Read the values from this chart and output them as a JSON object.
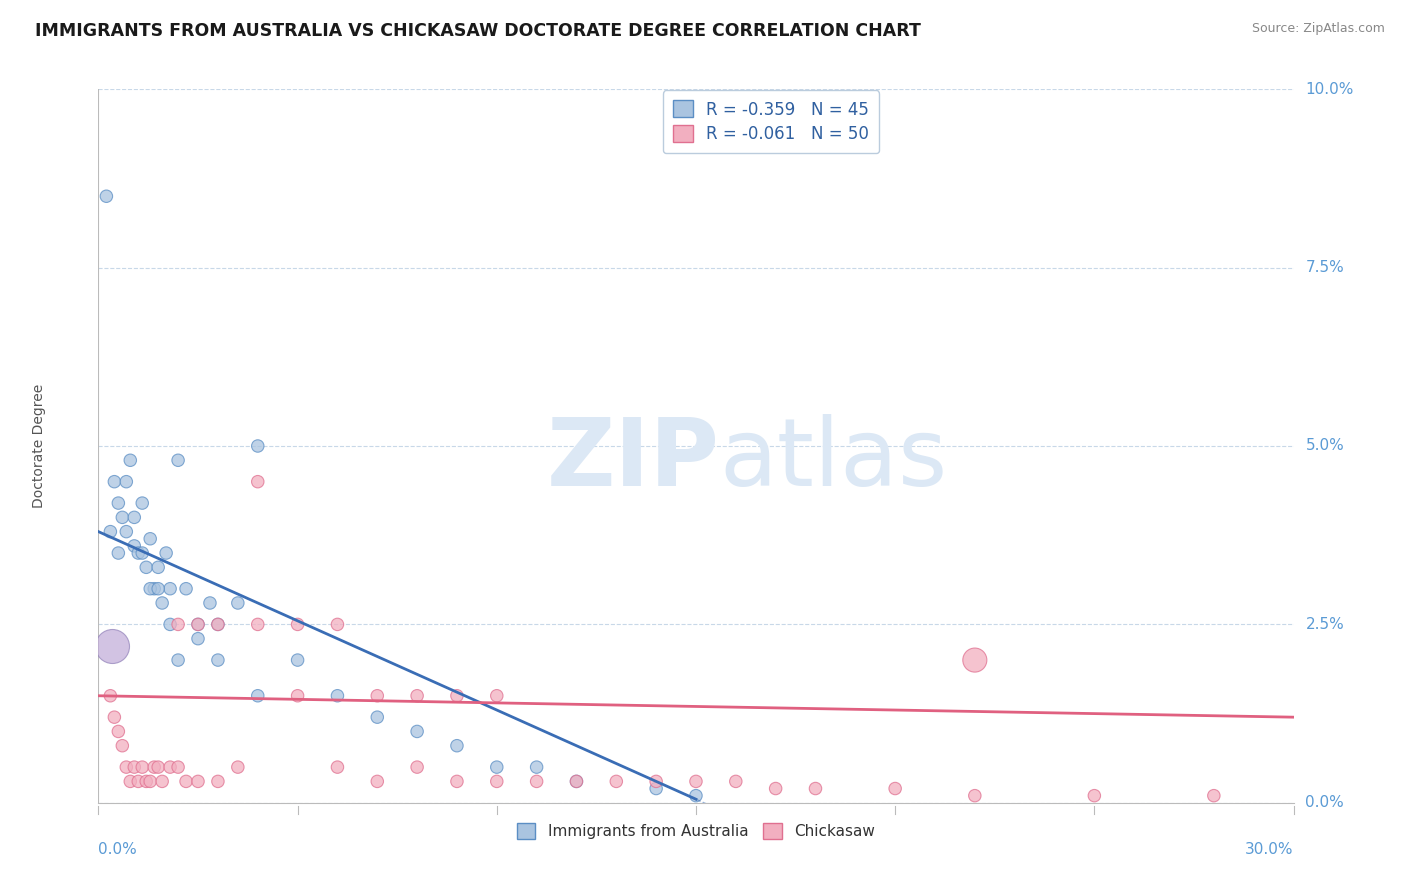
{
  "title": "IMMIGRANTS FROM AUSTRALIA VS CHICKASAW DOCTORATE DEGREE CORRELATION CHART",
  "source_text": "Source: ZipAtlas.com",
  "ylabel": "Doctorate Degree",
  "ytick_vals": [
    0.0,
    2.5,
    5.0,
    7.5,
    10.0
  ],
  "xlim": [
    0.0,
    30.0
  ],
  "ylim": [
    0.0,
    10.0
  ],
  "legend_r1": "-0.359",
  "legend_n1": "45",
  "legend_r2": "-0.061",
  "legend_n2": "50",
  "color_blue_fill": "#aac4e0",
  "color_blue_edge": "#5b8ec4",
  "color_pink_fill": "#f2afc0",
  "color_pink_edge": "#e07090",
  "color_blue_line": "#3a6db5",
  "color_pink_line": "#e06080",
  "watermark_color": "#dce8f5",
  "background_color": "#ffffff",
  "grid_color": "#c8d8e8",
  "blue_x": [
    0.4,
    0.5,
    0.6,
    0.7,
    0.8,
    0.9,
    1.0,
    1.1,
    1.2,
    1.3,
    1.4,
    1.5,
    1.6,
    1.7,
    1.8,
    2.0,
    2.2,
    2.5,
    2.8,
    3.0,
    3.5,
    4.0,
    0.3,
    0.5,
    0.7,
    0.9,
    1.1,
    1.3,
    1.5,
    1.8,
    2.0,
    2.5,
    3.0,
    4.0,
    5.0,
    6.0,
    7.0,
    8.0,
    9.0,
    10.0,
    11.0,
    12.0,
    14.0,
    15.0,
    0.2
  ],
  "blue_y": [
    4.5,
    4.2,
    4.0,
    3.8,
    4.8,
    3.6,
    3.5,
    4.2,
    3.3,
    3.7,
    3.0,
    3.3,
    2.8,
    3.5,
    3.0,
    4.8,
    3.0,
    2.5,
    2.8,
    2.5,
    2.8,
    5.0,
    3.8,
    3.5,
    4.5,
    4.0,
    3.5,
    3.0,
    3.0,
    2.5,
    2.0,
    2.3,
    2.0,
    1.5,
    2.0,
    1.5,
    1.2,
    1.0,
    0.8,
    0.5,
    0.5,
    0.3,
    0.2,
    0.1,
    8.5
  ],
  "blue_s": [
    80,
    80,
    80,
    80,
    80,
    80,
    80,
    80,
    80,
    80,
    80,
    80,
    80,
    80,
    80,
    80,
    80,
    80,
    80,
    80,
    80,
    80,
    80,
    80,
    80,
    80,
    80,
    80,
    80,
    80,
    80,
    80,
    80,
    80,
    80,
    80,
    80,
    80,
    80,
    80,
    80,
    80,
    80,
    80,
    80
  ],
  "pink_x": [
    0.3,
    0.4,
    0.5,
    0.6,
    0.7,
    0.8,
    0.9,
    1.0,
    1.1,
    1.2,
    1.3,
    1.4,
    1.5,
    1.6,
    1.8,
    2.0,
    2.2,
    2.5,
    3.0,
    3.5,
    4.0,
    5.0,
    6.0,
    7.0,
    8.0,
    9.0,
    10.0,
    11.0,
    12.0,
    13.0,
    14.0,
    15.0,
    16.0,
    17.0,
    18.0,
    20.0,
    22.0,
    25.0,
    28.0,
    2.0,
    2.5,
    3.0,
    4.0,
    5.0,
    6.0,
    7.0,
    8.0,
    9.0,
    10.0,
    22.0
  ],
  "pink_y": [
    1.5,
    1.2,
    1.0,
    0.8,
    0.5,
    0.3,
    0.5,
    0.3,
    0.5,
    0.3,
    0.3,
    0.5,
    0.5,
    0.3,
    0.5,
    0.5,
    0.3,
    0.3,
    0.3,
    0.5,
    4.5,
    1.5,
    0.5,
    0.3,
    0.5,
    0.3,
    0.3,
    0.3,
    0.3,
    0.3,
    0.3,
    0.3,
    0.3,
    0.2,
    0.2,
    0.2,
    0.1,
    0.1,
    0.1,
    2.5,
    2.5,
    2.5,
    2.5,
    2.5,
    2.5,
    1.5,
    1.5,
    1.5,
    1.5,
    2.0
  ],
  "pink_s": [
    80,
    80,
    80,
    80,
    80,
    80,
    80,
    80,
    80,
    80,
    80,
    80,
    80,
    80,
    80,
    80,
    80,
    80,
    80,
    80,
    80,
    80,
    80,
    80,
    80,
    80,
    80,
    80,
    80,
    80,
    80,
    80,
    80,
    80,
    80,
    80,
    80,
    80,
    80,
    80,
    80,
    80,
    80,
    80,
    80,
    80,
    80,
    80,
    80,
    300
  ],
  "large_purple_x": 0.35,
  "large_purple_y": 2.2,
  "blue_trend_x0": 0.0,
  "blue_trend_y0": 3.8,
  "blue_trend_x1": 15.0,
  "blue_trend_y1": 0.05,
  "pink_trend_x0": 0.0,
  "pink_trend_y0": 1.5,
  "pink_trend_x1": 30.0,
  "pink_trend_y1": 1.2
}
